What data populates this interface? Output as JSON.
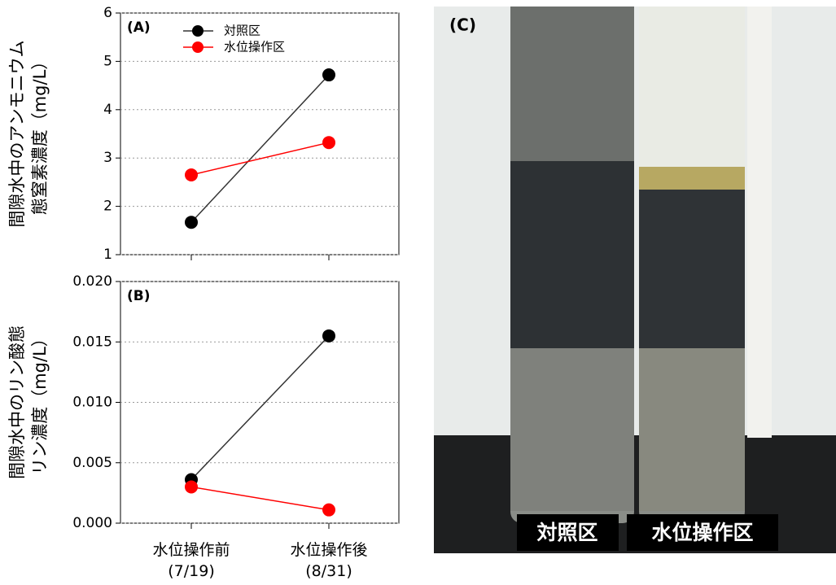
{
  "chart_data": [
    {
      "type": "line",
      "panel_label": "(A)",
      "ylabel": [
        "間隙水中のアンモニウム",
        "態窒素濃度（mg/L）"
      ],
      "categories": [
        null,
        null
      ],
      "series": [
        {
          "name": "対照区",
          "color": "#000000",
          "line_color": "#333333",
          "values": [
            1.67,
            4.72
          ]
        },
        {
          "name": "水位操作区",
          "color": "#ff0000",
          "line_color": "#ff0000",
          "values": [
            2.65,
            3.32
          ]
        }
      ],
      "ylim": [
        1,
        6
      ],
      "yticks": [
        1,
        2,
        3,
        4,
        5,
        6
      ],
      "grid": true,
      "legend": "top"
    },
    {
      "type": "line",
      "panel_label": "(B)",
      "ylabel": [
        "間隙水中のリン酸態",
        "リン濃度（mg/L）"
      ],
      "categories": [
        "水位操作前\n(7/19)",
        "水位操作後\n(8/31)"
      ],
      "series": [
        {
          "name": "対照区",
          "color": "#000000",
          "line_color": "#333333",
          "values": [
            0.0036,
            0.0155
          ]
        },
        {
          "name": "水位操作区",
          "color": "#ff0000",
          "line_color": "#ff0000",
          "values": [
            0.003,
            0.0011
          ]
        }
      ],
      "ylim": [
        0,
        0.02
      ],
      "yticks": [
        {
          "value": 0,
          "label": "0.000"
        },
        {
          "value": 0.005,
          "label": "0.005"
        },
        {
          "value": 0.01,
          "label": "0.010"
        },
        {
          "value": 0.015,
          "label": "0.015"
        },
        {
          "value": 0.02,
          "label": "0.020"
        }
      ],
      "grid": true
    }
  ],
  "photo": {
    "panel_label": "(C)",
    "captions": [
      "対照区",
      "水位操作区"
    ]
  }
}
